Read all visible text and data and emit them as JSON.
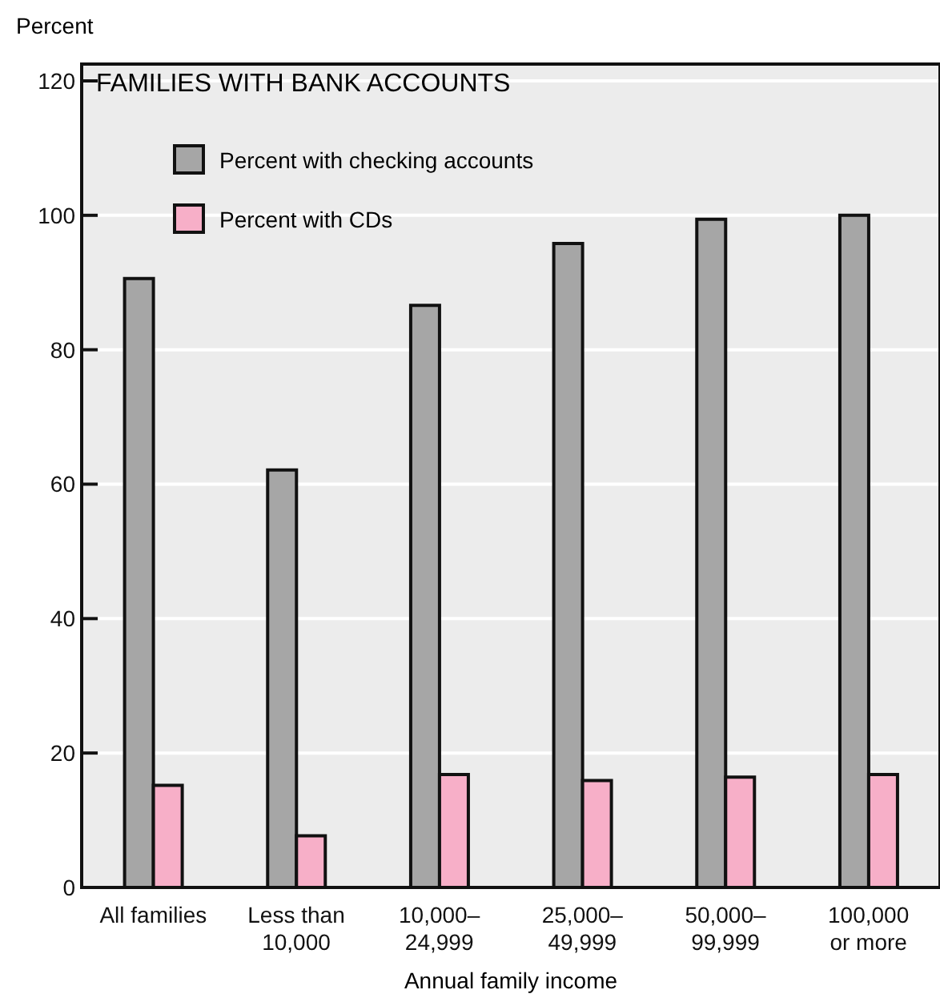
{
  "chart_data": {
    "type": "bar",
    "title": "FAMILIES WITH BANK ACCOUNTS",
    "xlabel": "Annual family income",
    "ylabel": "Percent",
    "categories": [
      "All families",
      "Less than\n10,000",
      "10,000–\n24,999",
      "25,000–\n49,999",
      "50,000–\n99,999",
      "100,000\nor more"
    ],
    "series": [
      {
        "name": "Percent with checking accounts",
        "color": "#a6a6a6",
        "values": [
          90.6,
          62.1,
          86.6,
          95.8,
          99.4,
          100
        ]
      },
      {
        "name": "Percent with CDs",
        "color": "#f7afc8",
        "values": [
          15.2,
          7.7,
          16.8,
          15.9,
          16.4,
          16.8
        ]
      }
    ],
    "ylim": [
      0,
      122.5
    ],
    "yticks": [
      0,
      20,
      40,
      60,
      80,
      100,
      120
    ],
    "grid": "y",
    "legend": "top left"
  }
}
